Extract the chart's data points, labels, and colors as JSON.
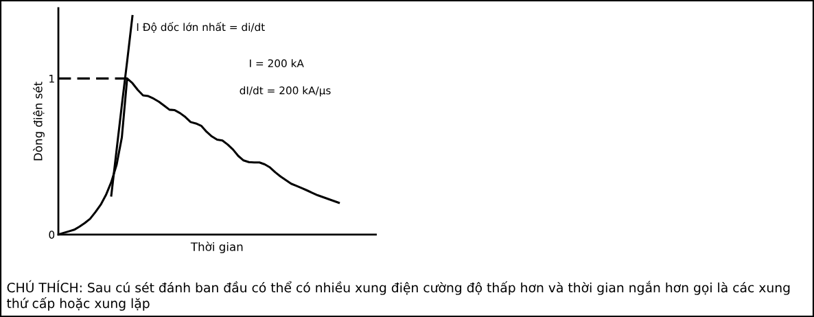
{
  "chart_data": {
    "type": "line",
    "xlabel": "Thời gian",
    "ylabel": "Dòng điện sét",
    "categories": [
      null,
      null,
      null,
      null,
      null,
      null,
      null,
      null,
      null,
      null,
      null,
      null,
      null,
      null,
      null,
      null,
      null,
      null,
      null,
      null,
      null,
      null,
      null,
      null,
      null,
      null,
      null,
      null,
      null,
      null,
      null,
      null,
      null,
      null,
      null,
      null,
      null,
      null,
      null,
      null,
      null,
      null,
      null,
      null,
      null,
      null,
      null,
      null,
      null,
      null,
      null,
      null,
      null,
      null,
      null,
      null,
      null,
      null,
      null,
      null,
      null
    ],
    "ylim": [
      0,
      1.45
    ],
    "yticks": [
      0,
      1
    ],
    "grid": false,
    "legend": false,
    "marker": "none",
    "series": [
      {
        "color": "#000000",
        "line_style": "solid",
        "values": [
          0,
          0.011,
          0.021,
          0.031,
          0.051,
          0.074,
          0.101,
          0.144,
          0.191,
          0.254,
          0.336,
          0.446,
          0.623,
          1.0,
          0.97,
          0.927,
          0.892,
          0.887,
          0.871,
          0.851,
          0.826,
          0.8,
          0.797,
          0.778,
          0.753,
          0.721,
          0.712,
          0.697,
          0.659,
          0.629,
          0.608,
          0.603,
          0.577,
          0.545,
          0.504,
          0.475,
          0.464,
          0.462,
          0.462,
          0.45,
          0.43,
          0.399,
          0.372,
          0.349,
          0.326,
          0.312,
          0.298,
          0.283,
          0.267,
          0.252,
          0.24,
          0.228,
          0.216,
          0.204,
          null,
          null,
          null,
          null,
          null,
          null,
          null
        ]
      },
      {
        "color": "#000000",
        "line_style": "dashed",
        "values": [
          1,
          1,
          1,
          1,
          1,
          1,
          1,
          1,
          1,
          1,
          1,
          1,
          1,
          1,
          null,
          null,
          null,
          null,
          null,
          null,
          null,
          null,
          null,
          null,
          null,
          null,
          null,
          null,
          null,
          null,
          null,
          null,
          null,
          null,
          null,
          null,
          null,
          null,
          null,
          null,
          null,
          null,
          null,
          null,
          null,
          null,
          null,
          null,
          null,
          null,
          null,
          null,
          null,
          null,
          null,
          null,
          null,
          null,
          null,
          null,
          null
        ]
      },
      {
        "color": "#000000",
        "line_style": "solid",
        "values": [
          null,
          null,
          null,
          null,
          null,
          null,
          null,
          null,
          null,
          null,
          0.25,
          0.54,
          0.83,
          1.11,
          1.4,
          null,
          null,
          null,
          null,
          null,
          null,
          null,
          null,
          null,
          null,
          null,
          null,
          null,
          null,
          null,
          null,
          null,
          null,
          null,
          null,
          null,
          null,
          null,
          null,
          null,
          null,
          null,
          null,
          null,
          null,
          null,
          null,
          null,
          null,
          null,
          null,
          null,
          null,
          null,
          null,
          null,
          null,
          null,
          null,
          null,
          null
        ]
      }
    ],
    "annotations": [
      "I Độ dốc lớn nhất = di/dt",
      "I = 200 kA",
      "dI/dt = 200 kA/µs",
      "CHÚ THÍCH: Sau cú sét đánh ban đầu có thể có nhiều xung điện cường độ thấp hơn và thời gian ngắn hơn gọi là các xung thứ cấp hoặc xung lặp"
    ]
  }
}
